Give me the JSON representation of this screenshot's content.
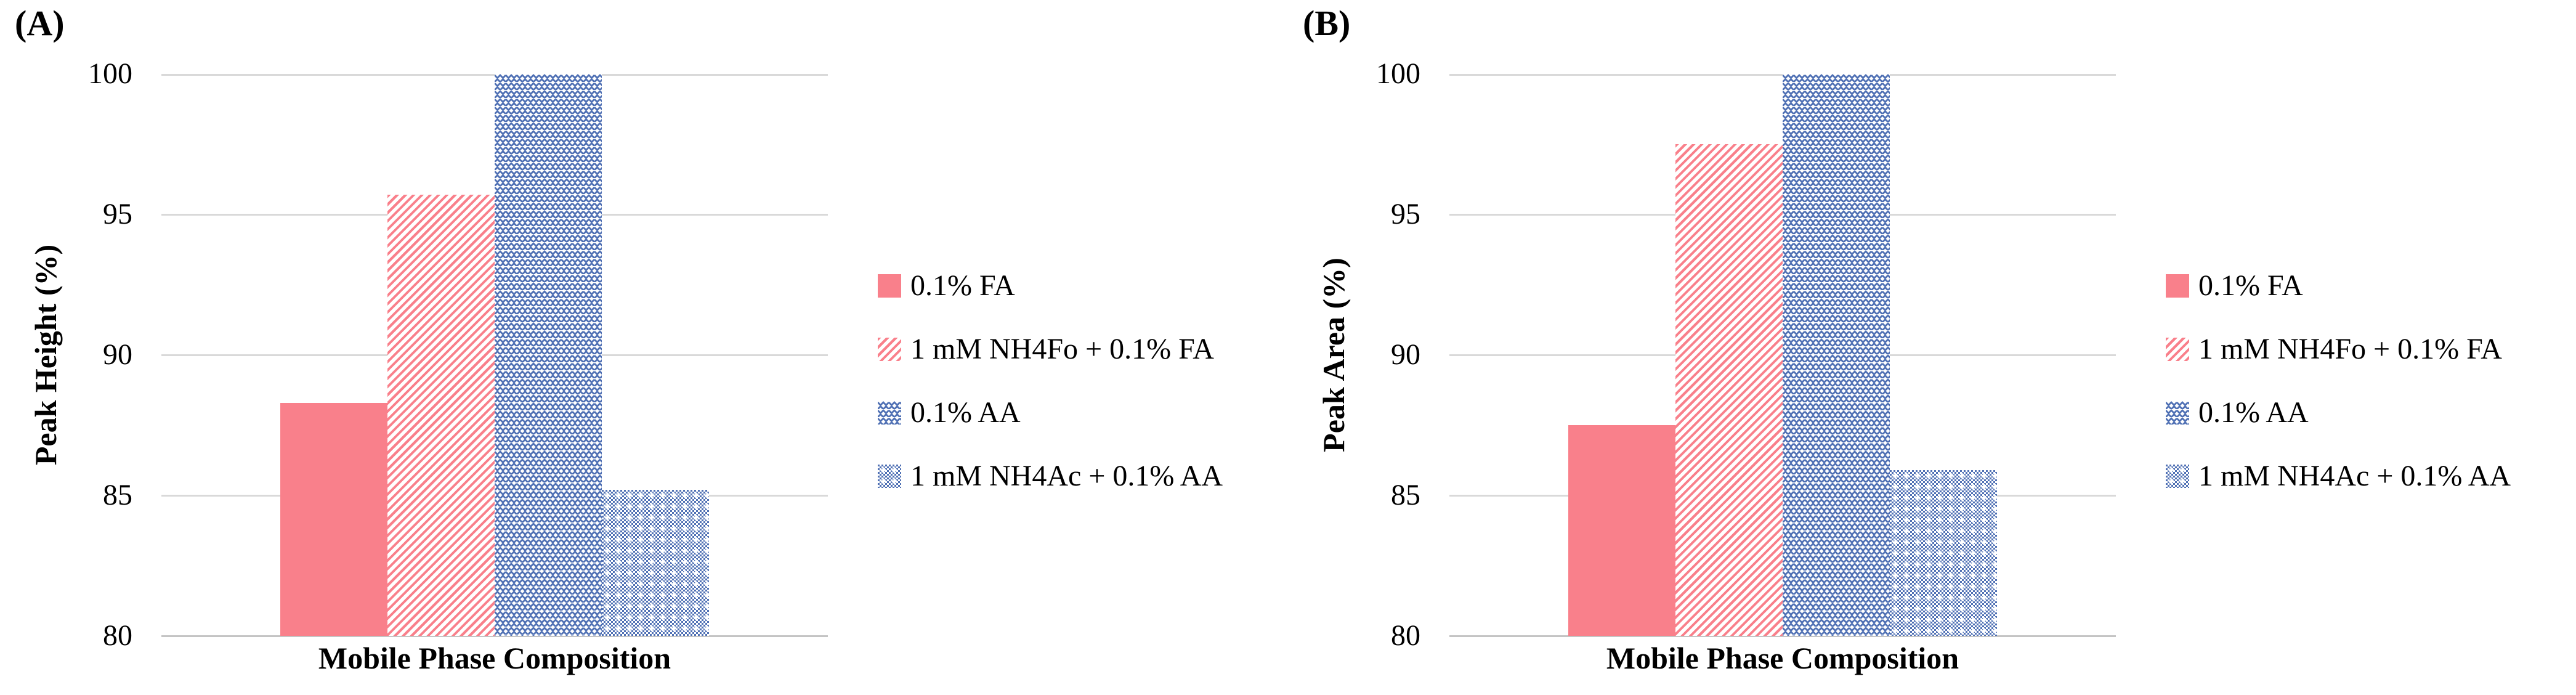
{
  "figure_type": "two-panel grouped bar figure",
  "panels": [
    {
      "panel_label": "(A)"
    },
    {
      "panel_label": "(B)"
    }
  ],
  "chart_data": [
    {
      "type": "bar",
      "title": "(A)",
      "xlabel": "Mobile Phase Composition",
      "ylabel": "Peak Height (%)",
      "ylim": [
        80,
        100
      ],
      "yticks": [
        100,
        95,
        90,
        85,
        80
      ],
      "grid": true,
      "legend_position": "right",
      "categories": [
        "0.1% FA",
        "1 mM NH4Fo + 0.1% FA",
        "0.1% AA",
        "1 mM NH4Ac + 0.1% AA"
      ],
      "values": [
        88.3,
        95.7,
        100,
        85.2
      ]
    },
    {
      "type": "bar",
      "title": "(B)",
      "xlabel": "Mobile Phase Composition",
      "ylabel": "Peak Area (%)",
      "ylim": [
        80,
        100
      ],
      "yticks": [
        100,
        95,
        90,
        85,
        80
      ],
      "grid": true,
      "legend_position": "right",
      "categories": [
        "0.1% FA",
        "1 mM NH4Fo + 0.1% FA",
        "0.1% AA",
        "1 mM NH4Ac + 0.1% AA"
      ],
      "values": [
        87.5,
        97.5,
        100,
        85.9
      ]
    }
  ],
  "legend": {
    "entries": [
      {
        "label": "0.1% FA",
        "fill": "solid",
        "color_key": "pink"
      },
      {
        "label": "1 mM NH4Fo + 0.1% FA",
        "fill": "stripe",
        "color_key": "pink"
      },
      {
        "label": "0.1% AA",
        "fill": "zigzag",
        "color_key": "blue"
      },
      {
        "label": "1 mM NH4Ac + 0.1% AA",
        "fill": "check",
        "color_key": "blue"
      }
    ]
  },
  "colors": {
    "pink": "#F9808B",
    "blue": "#4F70B4",
    "gridline": "#D9D9D9",
    "axis_line": "#C4C4C4",
    "text": "#000000"
  }
}
